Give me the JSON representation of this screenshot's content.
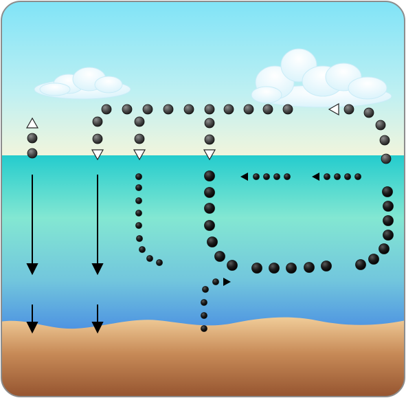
{
  "scene": {
    "sky_top": "#7fe3f7",
    "sky_bottom": "#f2f5dc",
    "water_top": "#2ccfcf",
    "water_mid": "#7fe6d0",
    "water_bottom": "#4f93e0",
    "sand_top": "#efc994",
    "sand_bottom": "#9a5a33",
    "frame_border": "#9a9a9a"
  },
  "diagram": {
    "description": "",
    "marker_colors": {
      "dot": "#333333",
      "dot_highlight": "#9a9a9a",
      "arrow": "#000000",
      "open_triangle_fill": "#ffffff"
    }
  }
}
